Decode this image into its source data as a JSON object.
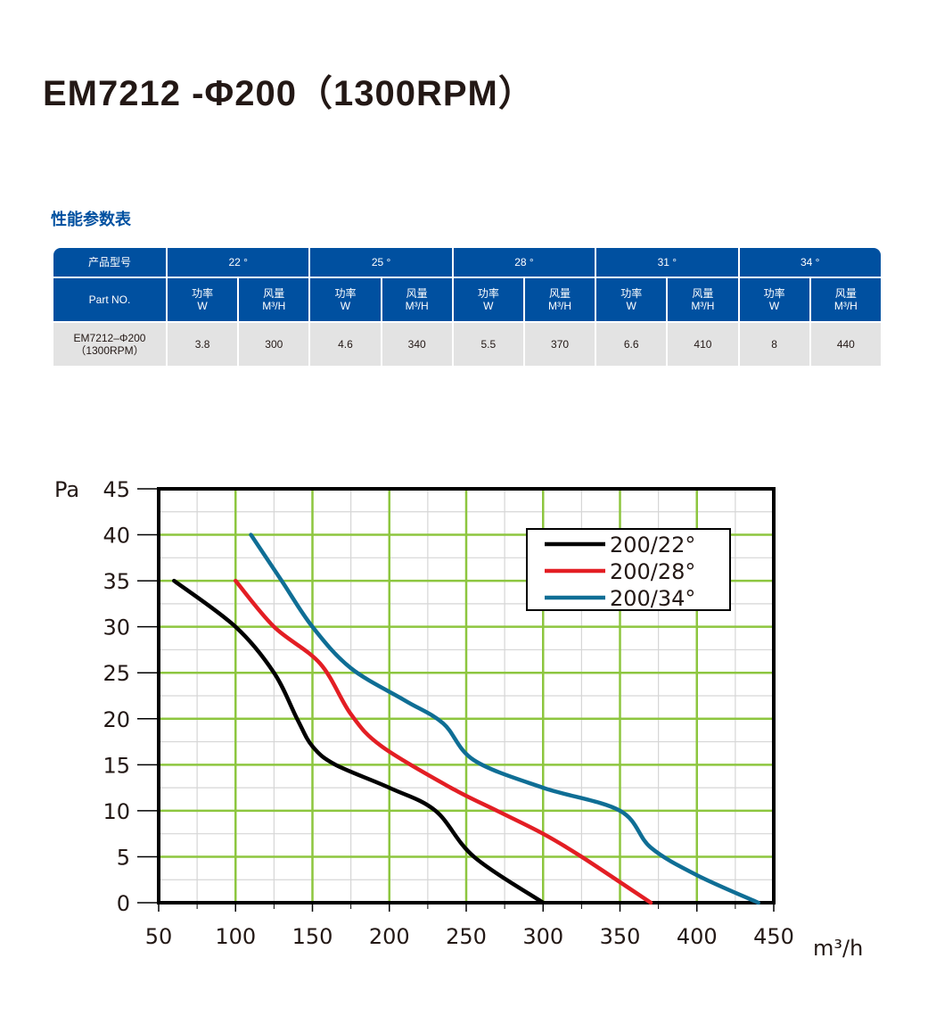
{
  "page": {
    "title": "EM7212 -Φ200（1300RPM）",
    "section_title": "性能参数表"
  },
  "table": {
    "corner_label": "产品型号",
    "part_label": "Part NO.",
    "angles": [
      "22 °",
      "25 °",
      "28 °",
      "31 °",
      "34 °"
    ],
    "sub_headers": [
      {
        "label": "功率",
        "unit": "W"
      },
      {
        "label": "风量",
        "unit": "M³/H"
      }
    ],
    "row": {
      "part_line1": "EM7212–Φ200",
      "part_line2": "（1300RPM）",
      "values": [
        "3.8",
        "300",
        "4.6",
        "340",
        "5.5",
        "370",
        "6.6",
        "410",
        "8",
        "440"
      ]
    }
  },
  "chart_data": {
    "type": "line",
    "xlabel": "m³/h",
    "ylabel": "Pa",
    "xlim": [
      50,
      450
    ],
    "ylim": [
      0,
      45
    ],
    "x_ticks": [
      "50",
      "100",
      "150",
      "200",
      "250",
      "300",
      "350",
      "400",
      "450"
    ],
    "y_ticks": [
      "0",
      "5",
      "10",
      "15",
      "20",
      "25",
      "30",
      "35",
      "40",
      "45"
    ],
    "grid": true,
    "legend_position": "top-right",
    "series": [
      {
        "name": "200/22°",
        "color": "#000000",
        "points": [
          [
            60,
            35
          ],
          [
            100,
            30
          ],
          [
            125,
            25
          ],
          [
            140,
            20
          ],
          [
            150,
            17
          ],
          [
            165,
            15
          ],
          [
            200,
            12.5
          ],
          [
            230,
            10
          ],
          [
            255,
            5
          ],
          [
            300,
            0
          ]
        ]
      },
      {
        "name": "200/28°",
        "color": "#e31e24",
        "points": [
          [
            100,
            35
          ],
          [
            125,
            30
          ],
          [
            155,
            26
          ],
          [
            175,
            20.5
          ],
          [
            195,
            17
          ],
          [
            240,
            12.5
          ],
          [
            270,
            10
          ],
          [
            300,
            7.5
          ],
          [
            325,
            5
          ],
          [
            370,
            0
          ]
        ]
      },
      {
        "name": "200/34°",
        "color": "#0f6e95",
        "points": [
          [
            110,
            40
          ],
          [
            130,
            35
          ],
          [
            150,
            30
          ],
          [
            175,
            25.5
          ],
          [
            210,
            22
          ],
          [
            235,
            19.5
          ],
          [
            255,
            15.5
          ],
          [
            300,
            12.5
          ],
          [
            350,
            10
          ],
          [
            370,
            6
          ],
          [
            400,
            3
          ],
          [
            440,
            0
          ]
        ]
      }
    ]
  }
}
